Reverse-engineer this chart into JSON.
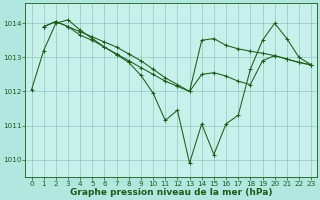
{
  "bg_color": "#b0e8e0",
  "plot_bg_color": "#c8f0ea",
  "grid_color": "#90c8c0",
  "line_color": "#1a5c1a",
  "xlabel": "Graphe pression niveau de la mer (hPa)",
  "xlabel_fontsize": 6.5,
  "tick_fontsize": 5.2,
  "ylim": [
    1009.5,
    1014.6
  ],
  "xlim": [
    -0.5,
    23.5
  ],
  "yticks": [
    1010,
    1011,
    1012,
    1013,
    1014
  ],
  "xticks": [
    0,
    1,
    2,
    3,
    4,
    5,
    6,
    7,
    8,
    9,
    10,
    11,
    12,
    13,
    14,
    15,
    16,
    17,
    18,
    19,
    20,
    21,
    22,
    23
  ],
  "series": [
    {
      "start": 0,
      "values": [
        1012.05,
        1013.2,
        1014.0,
        1014.1,
        1013.8,
        1013.55,
        1013.3,
        1013.08,
        1012.85,
        1012.47,
        1011.95,
        1011.15,
        1011.45,
        1009.9,
        1011.05,
        1010.15,
        1011.05,
        1011.3,
        1012.65,
        1013.5,
        1014.0,
        1013.55,
        1013.0,
        1012.78
      ]
    },
    {
      "start": 1,
      "values": [
        1013.9,
        1014.05,
        1013.9,
        1013.65,
        1013.5,
        1013.3,
        1013.1,
        1012.9,
        1012.7,
        1012.5,
        1012.3,
        1012.15,
        1012.0,
        1013.5,
        1013.55,
        1013.35,
        1013.25,
        1013.18,
        1013.12,
        1013.05,
        1012.95,
        1012.85,
        1012.78
      ]
    },
    {
      "start": 1,
      "values": [
        1013.9,
        1014.05,
        1013.9,
        1013.75,
        1013.6,
        1013.45,
        1013.3,
        1013.1,
        1012.9,
        1012.65,
        1012.4,
        1012.2,
        1012.0,
        1012.5,
        1012.55,
        1012.45,
        1012.3,
        1012.2,
        1012.9,
        1013.05,
        1012.95,
        1012.85,
        1012.78
      ]
    }
  ]
}
